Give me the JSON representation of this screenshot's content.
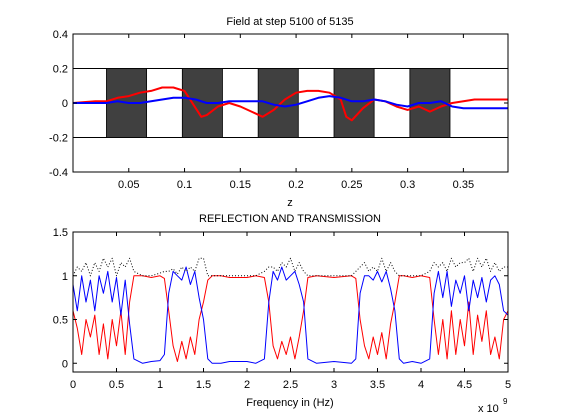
{
  "chart_data": [
    {
      "type": "line",
      "title": "Field at step 5100 of 5135",
      "xlabel": "z",
      "ylabel": "",
      "xlim": [
        0,
        0.39
      ],
      "ylim": [
        -0.4,
        0.4
      ],
      "xticks": [
        0.05,
        0.1,
        0.15,
        0.2,
        0.25,
        0.3,
        0.35
      ],
      "xtick_labels": [
        "0.05",
        "0.1",
        "0.15",
        "0.2",
        "0.25",
        "0.3",
        "0.35"
      ],
      "yticks": [
        -0.4,
        -0.2,
        0,
        0.2,
        0.4
      ],
      "ytick_labels": [
        "-0.4",
        "-0.2",
        "0",
        "0.2",
        "0.4"
      ],
      "grid": false,
      "legend": "none",
      "slab_band": [
        -0.2,
        0.2
      ],
      "dielectric_slabs": [
        [
          0.03,
          0.066
        ],
        [
          0.098,
          0.134
        ],
        [
          0.166,
          0.202
        ],
        [
          0.234,
          0.27
        ],
        [
          0.302,
          0.338
        ]
      ],
      "colors": {
        "slab": "#404040",
        "series_1": "#ff0000",
        "series_2": "#0000ff"
      },
      "series": [
        {
          "x": [
            0,
            0.02,
            0.03,
            0.04,
            0.05,
            0.06,
            0.07,
            0.08,
            0.09,
            0.1,
            0.11,
            0.115,
            0.12,
            0.13,
            0.14,
            0.15,
            0.16,
            0.17,
            0.18,
            0.19,
            0.2,
            0.21,
            0.22,
            0.23,
            0.24,
            0.245,
            0.25,
            0.26,
            0.27,
            0.28,
            0.29,
            0.3,
            0.31,
            0.32,
            0.33,
            0.34,
            0.35,
            0.36,
            0.37,
            0.39
          ],
          "y": [
            0,
            0.01,
            0.01,
            0.03,
            0.04,
            0.06,
            0.07,
            0.09,
            0.09,
            0.07,
            -0.03,
            -0.08,
            -0.07,
            -0.02,
            0,
            -0.02,
            -0.05,
            -0.08,
            -0.04,
            0.02,
            0.06,
            0.07,
            0.07,
            0.06,
            0.02,
            -0.08,
            -0.1,
            -0.03,
            0.02,
            0.01,
            -0.02,
            -0.04,
            -0.02,
            -0.05,
            -0.02,
            0,
            0.01,
            0.02,
            0.02,
            0.02
          ]
        },
        {
          "x": [
            0,
            0.02,
            0.03,
            0.04,
            0.05,
            0.06,
            0.07,
            0.08,
            0.09,
            0.1,
            0.11,
            0.12,
            0.13,
            0.14,
            0.15,
            0.16,
            0.17,
            0.18,
            0.19,
            0.2,
            0.21,
            0.22,
            0.23,
            0.24,
            0.25,
            0.26,
            0.27,
            0.28,
            0.29,
            0.3,
            0.31,
            0.32,
            0.33,
            0.34,
            0.35,
            0.36,
            0.37,
            0.39
          ],
          "y": [
            0,
            0,
            0,
            0.01,
            0,
            0,
            0.01,
            0.02,
            0.03,
            0.03,
            0.02,
            0,
            0,
            0.01,
            0.01,
            0.01,
            0.01,
            -0.01,
            -0.02,
            -0.01,
            0.01,
            0.03,
            0.04,
            0.03,
            0.01,
            0.01,
            0.02,
            0.01,
            -0.01,
            -0.02,
            0,
            0,
            0.01,
            -0.02,
            -0.03,
            -0.03,
            -0.03,
            -0.03
          ]
        }
      ]
    },
    {
      "type": "line",
      "title": "REFLECTION AND TRANSMISSION",
      "xlabel": "Frequency in (Hz)",
      "ylabel": "",
      "x_scale_label": "x 10",
      "x_scale_exponent": "9",
      "xlim": [
        0,
        5
      ],
      "ylim": [
        -0.1,
        1.5
      ],
      "xticks": [
        0,
        0.5,
        1,
        1.5,
        2,
        2.5,
        3,
        3.5,
        4,
        4.5,
        5
      ],
      "xtick_labels": [
        "0",
        "0.5",
        "1",
        "1.5",
        "2",
        "2.5",
        "3",
        "3.5",
        "4",
        "4.5",
        "5"
      ],
      "yticks": [
        0,
        0.5,
        1,
        1.5
      ],
      "ytick_labels": [
        "0",
        "0.5",
        "1",
        "1.5"
      ],
      "grid": false,
      "legend": "none",
      "colors": {
        "series_1": "#ff0000",
        "series_2": "#0000ff",
        "series_3": "#000000"
      },
      "series": [
        {
          "x": [
            0,
            0.05,
            0.1,
            0.15,
            0.2,
            0.25,
            0.3,
            0.35,
            0.4,
            0.45,
            0.5,
            0.55,
            0.6,
            0.65,
            0.7,
            0.8,
            0.9,
            1.0,
            1.05,
            1.1,
            1.15,
            1.2,
            1.25,
            1.3,
            1.35,
            1.4,
            1.45,
            1.5,
            1.55,
            1.6,
            1.7,
            1.8,
            2.0,
            2.1,
            2.2,
            2.25,
            2.3,
            2.35,
            2.4,
            2.45,
            2.5,
            2.55,
            2.6,
            2.65,
            2.7,
            2.8,
            3.0,
            3.2,
            3.25,
            3.3,
            3.35,
            3.4,
            3.45,
            3.5,
            3.55,
            3.6,
            3.65,
            3.7,
            3.75,
            3.8,
            3.9,
            4.0,
            4.1,
            4.15,
            4.2,
            4.25,
            4.3,
            4.35,
            4.4,
            4.45,
            4.5,
            4.55,
            4.6,
            4.65,
            4.7,
            4.75,
            4.8,
            4.85,
            4.9,
            4.95,
            5.0
          ],
          "y": [
            0.6,
            0.4,
            0.1,
            0.5,
            0.3,
            0.55,
            0.1,
            0.45,
            0.05,
            0.5,
            0.2,
            0.6,
            0.1,
            0.7,
            1.0,
            1.0,
            0.98,
            1.0,
            0.97,
            0.6,
            0.2,
            0.02,
            0.25,
            0.05,
            0.3,
            0.1,
            0.5,
            0.7,
            0.95,
            1.0,
            1.0,
            0.98,
            0.98,
            1.0,
            0.98,
            0.7,
            0.2,
            0.05,
            0.25,
            0.1,
            0.3,
            0.05,
            0.3,
            0.6,
            0.98,
            1.0,
            0.98,
            1.0,
            0.97,
            0.5,
            0.2,
            0.05,
            0.3,
            0.1,
            0.35,
            0.05,
            0.45,
            0.7,
            1.0,
            1.0,
            0.98,
            1.0,
            0.98,
            0.5,
            0.1,
            0.5,
            0.05,
            0.6,
            0.1,
            0.5,
            0.2,
            0.7,
            0.1,
            0.55,
            0.25,
            0.6,
            0.1,
            0.3,
            0.05,
            0.5,
            0.6
          ]
        },
        {
          "x": [
            0,
            0.05,
            0.1,
            0.15,
            0.2,
            0.25,
            0.3,
            0.35,
            0.4,
            0.45,
            0.5,
            0.55,
            0.6,
            0.65,
            0.7,
            0.8,
            0.9,
            1.0,
            1.05,
            1.1,
            1.15,
            1.2,
            1.25,
            1.3,
            1.35,
            1.4,
            1.45,
            1.5,
            1.55,
            1.6,
            1.7,
            1.8,
            2.0,
            2.1,
            2.2,
            2.25,
            2.3,
            2.35,
            2.4,
            2.45,
            2.5,
            2.55,
            2.6,
            2.65,
            2.7,
            2.8,
            3.0,
            3.2,
            3.25,
            3.3,
            3.35,
            3.4,
            3.45,
            3.5,
            3.55,
            3.6,
            3.65,
            3.7,
            3.75,
            3.8,
            3.9,
            4.0,
            4.1,
            4.15,
            4.2,
            4.25,
            4.3,
            4.35,
            4.4,
            4.45,
            4.5,
            4.55,
            4.6,
            4.65,
            4.7,
            4.75,
            4.8,
            4.85,
            4.9,
            4.95,
            5.0
          ],
          "y": [
            0.9,
            0.6,
            1.0,
            0.7,
            0.95,
            0.6,
            1.0,
            0.8,
            1.05,
            0.7,
            0.98,
            0.55,
            0.95,
            0.45,
            0.05,
            0.0,
            0.02,
            0.03,
            0.1,
            0.8,
            1.05,
            1.0,
            0.95,
            1.1,
            0.9,
            1.05,
            0.75,
            0.5,
            0.05,
            0.0,
            0.0,
            0.02,
            0.02,
            0.0,
            0.05,
            0.7,
            1.05,
            0.95,
            1.1,
            0.95,
            1.0,
            1.05,
            0.9,
            0.7,
            0.05,
            0.0,
            0.02,
            0.0,
            0.05,
            0.8,
            1.0,
            1.0,
            0.95,
            1.05,
            0.93,
            1.05,
            0.85,
            0.6,
            0.05,
            0.0,
            0.02,
            0.0,
            0.05,
            0.8,
            1.05,
            0.75,
            1.05,
            0.65,
            0.95,
            0.8,
            1.0,
            0.6,
            0.95,
            0.75,
            0.98,
            0.7,
            0.95,
            1.0,
            0.9,
            0.6,
            0.55
          ]
        },
        {
          "x": [
            0,
            0.05,
            0.1,
            0.15,
            0.2,
            0.25,
            0.3,
            0.35,
            0.4,
            0.45,
            0.5,
            0.55,
            0.6,
            0.65,
            0.7,
            0.8,
            0.9,
            1.0,
            1.05,
            1.1,
            1.15,
            1.2,
            1.25,
            1.3,
            1.35,
            1.4,
            1.45,
            1.5,
            1.55,
            1.6,
            1.7,
            1.8,
            2.0,
            2.1,
            2.2,
            2.25,
            2.3,
            2.35,
            2.4,
            2.45,
            2.5,
            2.55,
            2.6,
            2.65,
            2.7,
            2.8,
            3.0,
            3.2,
            3.25,
            3.3,
            3.35,
            3.4,
            3.45,
            3.5,
            3.55,
            3.6,
            3.65,
            3.7,
            3.75,
            3.8,
            3.9,
            4.0,
            4.1,
            4.15,
            4.2,
            4.25,
            4.3,
            4.35,
            4.4,
            4.45,
            4.5,
            4.55,
            4.6,
            4.65,
            4.7,
            4.75,
            4.8,
            4.85,
            4.9,
            4.95,
            5.0
          ],
          "y": [
            1.0,
            1.1,
            1.05,
            1.15,
            1.0,
            1.15,
            1.05,
            1.2,
            1.1,
            1.2,
            1.0,
            1.15,
            1.1,
            1.2,
            1.05,
            1.0,
            1.0,
            1.03,
            1.05,
            1.05,
            1.08,
            1.02,
            1.1,
            1.05,
            1.1,
            1.05,
            1.2,
            1.2,
            1.0,
            1.0,
            1.0,
            1.0,
            1.0,
            1.0,
            1.05,
            1.1,
            1.1,
            1.05,
            1.15,
            1.1,
            1.2,
            1.05,
            1.15,
            1.05,
            1.0,
            1.0,
            1.0,
            1.0,
            1.05,
            1.1,
            1.15,
            1.05,
            1.1,
            1.05,
            1.2,
            1.05,
            1.15,
            1.05,
            1.0,
            1.0,
            1.0,
            1.0,
            1.05,
            1.15,
            1.1,
            1.15,
            1.05,
            1.2,
            1.1,
            1.15,
            1.15,
            1.2,
            1.05,
            1.2,
            1.1,
            1.2,
            1.05,
            1.15,
            1.05,
            1.1,
            1.1
          ],
          "style": "dotted"
        }
      ]
    }
  ]
}
